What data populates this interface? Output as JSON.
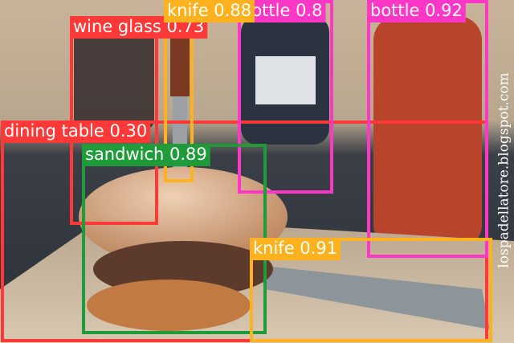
{
  "detections": [
    {
      "label": "dining table 0.30",
      "color": "#ff3838"
    },
    {
      "label": "wine glass 0.73",
      "color": "#ff3838"
    },
    {
      "label": "bottle 0.8",
      "color": "#ff37c7"
    },
    {
      "label": "knife 0.88",
      "color": "#ffb21d"
    },
    {
      "label": "bottle 0.92",
      "color": "#ff37c7"
    },
    {
      "label": "sandwich 0.89",
      "color": "#1f9b3a"
    },
    {
      "label": "knife 0.91",
      "color": "#ffb21d"
    }
  ],
  "watermark": "lospadellatore.blogspot.com"
}
